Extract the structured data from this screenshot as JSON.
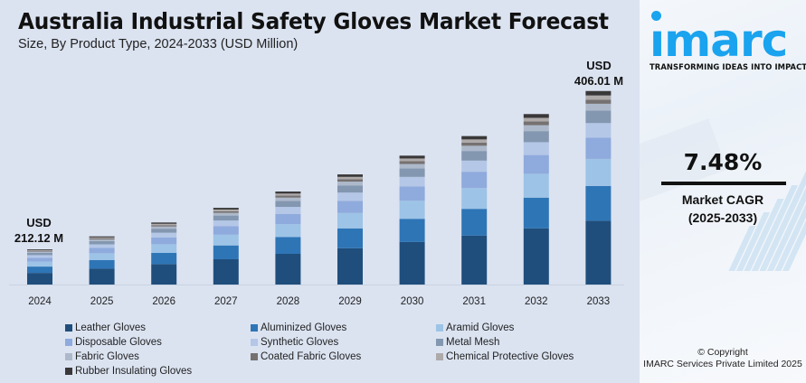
{
  "header": {
    "title": "Australia Industrial Safety Gloves Market Forecast",
    "subtitle": "Size, By Product Type, 2024-2033 (USD Million)"
  },
  "annotations": {
    "start_label_line1": "USD",
    "start_label_line2": "212.12 M",
    "end_label_line1": "USD",
    "end_label_line2": "406.01 M"
  },
  "chart_data": {
    "type": "bar",
    "stacked": true,
    "title": "Australia Industrial Safety Gloves Market Forecast",
    "subtitle": "Size, By Product Type, 2024-2033 (USD Million)",
    "xlabel": "",
    "ylabel": "",
    "grid": false,
    "legend_position": "bottom",
    "categories": [
      "2024",
      "2025",
      "2026",
      "2027",
      "2028",
      "2029",
      "2030",
      "2031",
      "2032",
      "2033"
    ],
    "totals": [
      212.12,
      228.0,
      245.0,
      263.0,
      283.0,
      304.0,
      327.0,
      351.0,
      378.0,
      406.01
    ],
    "series": [
      {
        "name": "Leather Gloves",
        "color": "#1f4e7c",
        "values": [
          70.0,
          75.2,
          80.9,
          86.8,
          93.4,
          100.3,
          107.9,
          115.8,
          124.7,
          134.0
        ]
      },
      {
        "name": "Aluminized Gloves",
        "color": "#2e75b6",
        "values": [
          38.2,
          41.0,
          44.1,
          47.3,
          50.9,
          54.7,
          58.9,
          63.2,
          68.0,
          73.1
        ]
      },
      {
        "name": "Aramid Gloves",
        "color": "#9dc3e6",
        "values": [
          29.7,
          31.9,
          34.3,
          36.8,
          39.6,
          42.6,
          45.8,
          49.1,
          52.9,
          56.8
        ]
      },
      {
        "name": "Disposable Gloves",
        "color": "#8faadc",
        "values": [
          23.3,
          25.1,
          27.0,
          28.9,
          31.1,
          33.4,
          36.0,
          38.6,
          41.6,
          44.7
        ]
      },
      {
        "name": "Synthetic Gloves",
        "color": "#b4c7e7",
        "values": [
          15.9,
          17.1,
          18.4,
          19.7,
          21.2,
          22.8,
          24.5,
          26.3,
          28.4,
          30.5
        ]
      },
      {
        "name": "Metal Mesh",
        "color": "#8497b0",
        "values": [
          13.8,
          14.8,
          15.9,
          17.1,
          18.4,
          19.8,
          21.3,
          22.8,
          24.6,
          26.4
        ]
      },
      {
        "name": "Fabric Gloves",
        "color": "#adb9ca",
        "values": [
          7.4,
          8.0,
          8.6,
          9.2,
          9.9,
          10.6,
          11.4,
          12.3,
          13.2,
          14.2
        ]
      },
      {
        "name": "Coated Fabric Gloves",
        "color": "#767171",
        "values": [
          4.6,
          4.9,
          5.3,
          5.7,
          6.1,
          6.5,
          7.0,
          7.5,
          8.1,
          8.7
        ]
      },
      {
        "name": "Chemical Protective Gloves",
        "color": "#aeaaaa",
        "values": [
          4.6,
          4.9,
          5.3,
          5.7,
          6.1,
          6.5,
          7.0,
          7.5,
          8.1,
          8.7
        ]
      },
      {
        "name": "Rubber Insulating Gloves",
        "color": "#3a3838",
        "values": [
          4.6,
          5.1,
          5.2,
          5.8,
          6.3,
          6.8,
          7.2,
          7.9,
          8.4,
          9.4
        ]
      }
    ]
  },
  "cagr": {
    "value": "7.48%",
    "label_line1": "Market CAGR",
    "label_line2": "(2025-2033)"
  },
  "brand": {
    "logo_text": "ımarc",
    "tagline": "TRANSFORMING IDEAS INTO IMPACT",
    "accent_color": "#1aa3ee"
  },
  "footer": {
    "copyright_line1": "© Copyright",
    "copyright_line2": "IMARC Services Private Limited 2025"
  }
}
